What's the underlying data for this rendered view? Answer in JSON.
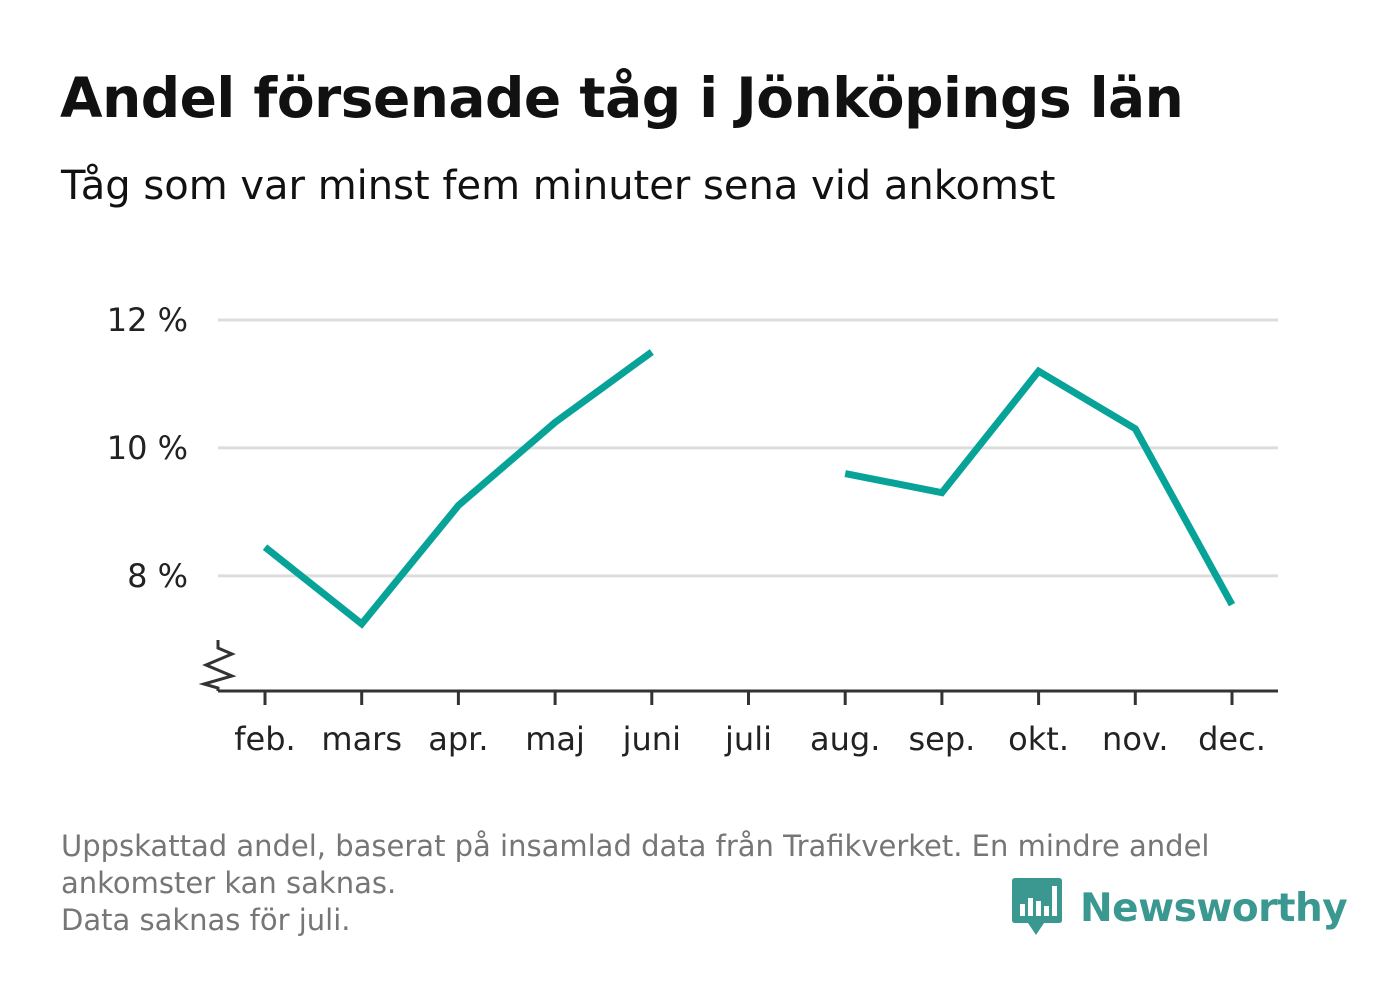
{
  "title": "Andel försenade tåg i Jönköpings län",
  "subtitle": "Tåg som var minst fem minuter sena vid ankomst",
  "footnote": {
    "line1": "Uppskattad andel, baserat på insamlad data från Trafikverket. En mindre andel",
    "line2": "ankomster kan saknas.",
    "line3": "Data saknas för juli."
  },
  "brand": {
    "name": "Newsworthy",
    "color": "#3b9890",
    "icon": "bar-chart-speech-bubble-icon"
  },
  "chart_data": {
    "type": "line",
    "categories": [
      "feb.",
      "mars",
      "apr.",
      "maj",
      "juni",
      "juli",
      "aug.",
      "sep.",
      "okt.",
      "nov.",
      "dec."
    ],
    "series": [
      {
        "values": [
          8.45,
          7.25,
          9.1,
          10.4,
          11.5,
          null,
          9.6,
          9.3,
          11.2,
          10.3,
          7.55
        ]
      }
    ],
    "yticks": [
      {
        "value": 8,
        "label": "8 %"
      },
      {
        "value": 10,
        "label": "10 %"
      },
      {
        "value": 12,
        "label": "12 %"
      }
    ],
    "ylim": [
      6.2,
      12
    ],
    "axis_break": true,
    "grid": true,
    "line_color": "#08a398",
    "grid_color": "#dddddd",
    "axis_color": "#333333"
  }
}
